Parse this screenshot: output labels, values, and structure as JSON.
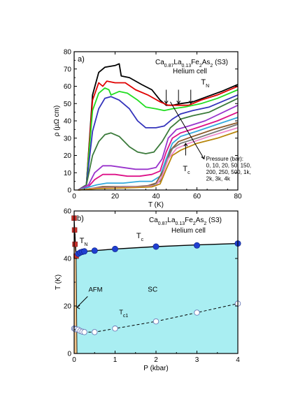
{
  "chart_data": [
    {
      "type": "line",
      "panel_label": "a)",
      "title_lines": [
        [
          {
            "t": "Ca"
          },
          {
            "t": "0.87",
            "sub": true
          },
          {
            "t": "La"
          },
          {
            "t": "0.13",
            "sub": true
          },
          {
            "t": "Fe"
          },
          {
            "t": "2",
            "sub": true
          },
          {
            "t": "As"
          },
          {
            "t": "2",
            "sub": true
          },
          {
            "t": "  (S3)"
          }
        ],
        [
          {
            "t": "Helium cell"
          }
        ]
      ],
      "xlabel": "T (K)",
      "ylabel": "ρ (µΩ cm)",
      "xlim": [
        0,
        80
      ],
      "ylim": [
        0,
        80
      ],
      "xticks": [
        0,
        20,
        40,
        60,
        80
      ],
      "yticks": [
        0,
        10,
        20,
        30,
        40,
        50,
        60,
        70,
        80
      ],
      "annotations": {
        "tn_label": "T",
        "tn_sub": "N",
        "tc_label": "T",
        "tc_sub": "c",
        "pressure_lines": [
          "Pressure (bar):",
          "0, 10, 20, 50, 150,",
          "200, 250, 500, 1k,",
          "2k, 3k, 4k"
        ]
      },
      "tn_arrows_x": [
        45,
        51,
        57
      ],
      "series": [
        {
          "color": "#000000",
          "points": [
            [
              2,
              0
            ],
            [
              6,
              3
            ],
            [
              9,
              55
            ],
            [
              12,
              68
            ],
            [
              15,
              71
            ],
            [
              20,
              72
            ],
            [
              22,
              73
            ],
            [
              23,
              66
            ],
            [
              27,
              65
            ],
            [
              33,
              61
            ],
            [
              38,
              58
            ],
            [
              42,
              52
            ],
            [
              45,
              49
            ],
            [
              48,
              49
            ],
            [
              52,
              50
            ],
            [
              58,
              51
            ],
            [
              65,
              54
            ],
            [
              72,
              57
            ],
            [
              80,
              61
            ]
          ]
        },
        {
          "color": "#e00000",
          "points": [
            [
              2,
              0
            ],
            [
              6,
              3
            ],
            [
              9,
              52
            ],
            [
              12,
              62
            ],
            [
              14,
              60
            ],
            [
              16,
              63
            ],
            [
              20,
              62
            ],
            [
              25,
              62
            ],
            [
              30,
              58
            ],
            [
              36,
              55
            ],
            [
              42,
              51
            ],
            [
              46,
              49
            ],
            [
              50,
              49
            ],
            [
              56,
              49
            ],
            [
              62,
              52
            ],
            [
              70,
              55
            ],
            [
              80,
              60
            ]
          ]
        },
        {
          "color": "#22dd22",
          "points": [
            [
              2,
              0
            ],
            [
              6,
              3
            ],
            [
              9,
              46
            ],
            [
              12,
              56
            ],
            [
              15,
              59
            ],
            [
              17,
              58
            ],
            [
              18,
              55
            ],
            [
              22,
              57
            ],
            [
              26,
              56
            ],
            [
              31,
              52
            ],
            [
              35,
              48
            ],
            [
              40,
              47
            ],
            [
              44,
              46
            ],
            [
              48,
              47
            ],
            [
              54,
              48
            ],
            [
              62,
              50
            ],
            [
              70,
              53
            ],
            [
              80,
              58
            ]
          ]
        },
        {
          "color": "#3333bb",
          "points": [
            [
              2,
              0
            ],
            [
              6,
              3
            ],
            [
              9,
              34
            ],
            [
              12,
              47
            ],
            [
              15,
              53
            ],
            [
              18,
              54
            ],
            [
              22,
              52
            ],
            [
              27,
              47
            ],
            [
              31,
              40
            ],
            [
              35,
              36
            ],
            [
              40,
              36
            ],
            [
              44,
              37
            ],
            [
              48,
              41
            ],
            [
              52,
              44
            ],
            [
              58,
              46
            ],
            [
              66,
              48
            ],
            [
              80,
              55
            ]
          ]
        },
        {
          "color": "#3a7a3a",
          "points": [
            [
              2,
              0
            ],
            [
              6,
              3
            ],
            [
              9,
              20
            ],
            [
              12,
              28
            ],
            [
              15,
              32
            ],
            [
              18,
              33
            ],
            [
              22,
              31
            ],
            [
              27,
              25
            ],
            [
              31,
              22
            ],
            [
              35,
              21
            ],
            [
              39,
              22
            ],
            [
              43,
              28
            ],
            [
              47,
              36
            ],
            [
              52,
              41
            ],
            [
              58,
              43
            ],
            [
              66,
              45
            ],
            [
              80,
              53
            ]
          ]
        },
        {
          "color": "#9933cc",
          "points": [
            [
              2,
              0
            ],
            [
              7,
              3
            ],
            [
              10,
              10
            ],
            [
              14,
              14
            ],
            [
              18,
              14
            ],
            [
              24,
              13
            ],
            [
              30,
              12
            ],
            [
              36,
              12
            ],
            [
              40,
              13
            ],
            [
              43,
              18
            ],
            [
              46,
              30
            ],
            [
              50,
              35
            ],
            [
              56,
              37
            ],
            [
              64,
              40
            ],
            [
              80,
              49
            ]
          ]
        },
        {
          "color": "#dd1188",
          "points": [
            [
              2,
              0
            ],
            [
              7,
              2
            ],
            [
              10,
              6
            ],
            [
              14,
              9
            ],
            [
              20,
              9
            ],
            [
              26,
              8
            ],
            [
              32,
              8
            ],
            [
              38,
              9
            ],
            [
              42,
              11
            ],
            [
              45,
              22
            ],
            [
              48,
              30
            ],
            [
              52,
              33
            ],
            [
              60,
              36
            ],
            [
              70,
              40
            ],
            [
              80,
              45
            ]
          ]
        },
        {
          "color": "#33aadd",
          "points": [
            [
              2,
              0
            ],
            [
              8,
              2
            ],
            [
              11,
              3
            ],
            [
              16,
              4
            ],
            [
              24,
              4
            ],
            [
              32,
              5
            ],
            [
              38,
              5
            ],
            [
              42,
              8
            ],
            [
              45,
              18
            ],
            [
              48,
              27
            ],
            [
              52,
              31
            ],
            [
              60,
              34
            ],
            [
              70,
              38
            ],
            [
              80,
              42
            ]
          ]
        },
        {
          "color": "#8b5a2b",
          "points": [
            [
              2,
              0
            ],
            [
              9,
              1
            ],
            [
              14,
              2
            ],
            [
              22,
              2
            ],
            [
              30,
              2
            ],
            [
              36,
              2.5
            ],
            [
              40,
              4
            ],
            [
              44,
              12
            ],
            [
              47,
              23
            ],
            [
              51,
              28
            ],
            [
              58,
              31
            ],
            [
              68,
              35
            ],
            [
              80,
              39
            ]
          ]
        },
        {
          "color": "#777777",
          "points": [
            [
              2,
              0
            ],
            [
              10,
              1
            ],
            [
              16,
              1.5
            ],
            [
              24,
              2
            ],
            [
              32,
              2
            ],
            [
              38,
              2.5
            ],
            [
              42,
              5
            ],
            [
              45,
              16
            ],
            [
              48,
              24
            ],
            [
              52,
              27
            ],
            [
              60,
              30
            ],
            [
              70,
              34
            ],
            [
              80,
              38
            ]
          ]
        },
        {
          "color": "#ee88cc",
          "points": [
            [
              2,
              0
            ],
            [
              10,
              1
            ],
            [
              18,
              1.3
            ],
            [
              26,
              1.6
            ],
            [
              34,
              1.8
            ],
            [
              40,
              2.5
            ],
            [
              43,
              8
            ],
            [
              46,
              18
            ],
            [
              50,
              24
            ],
            [
              56,
              27
            ],
            [
              66,
              31
            ],
            [
              80,
              36
            ]
          ]
        },
        {
          "color": "#b8860b",
          "points": [
            [
              2,
              0
            ],
            [
              11,
              0.8
            ],
            [
              20,
              1.1
            ],
            [
              30,
              1.4
            ],
            [
              38,
              1.8
            ],
            [
              42,
              3.5
            ],
            [
              45,
              12
            ],
            [
              48,
              20
            ],
            [
              52,
              23
            ],
            [
              60,
              27
            ],
            [
              70,
              30
            ],
            [
              80,
              34
            ]
          ]
        }
      ]
    },
    {
      "type": "line",
      "panel_label": "b)",
      "title_lines": [
        [
          {
            "t": "Ca"
          },
          {
            "t": "0.87",
            "sub": true
          },
          {
            "t": "La"
          },
          {
            "t": "0.13",
            "sub": true
          },
          {
            "t": "Fe"
          },
          {
            "t": "2",
            "sub": true
          },
          {
            "t": "As"
          },
          {
            "t": "2",
            "sub": true
          },
          {
            "t": "  (S3)"
          }
        ],
        [
          {
            "t": "Helium cell"
          }
        ]
      ],
      "xlabel": "P (kbar)",
      "ylabel": "T (K)",
      "xlim": [
        0,
        4
      ],
      "ylim": [
        0,
        60
      ],
      "xticks": [
        0,
        1,
        2,
        3,
        4
      ],
      "yticks": [
        0,
        20,
        40,
        60
      ],
      "labels": {
        "tn": "T",
        "tn_sub": "N",
        "tc": "T",
        "tc_sub": "c",
        "tc1": "T",
        "tc1_sub": "c1",
        "afm": "AFM",
        "sc": "SC"
      },
      "tn_points": [
        [
          0.0,
          57
        ],
        [
          0.01,
          52
        ],
        [
          0.02,
          46
        ],
        [
          0.05,
          41
        ]
      ],
      "tc_points": [
        [
          0.1,
          42
        ],
        [
          0.15,
          42.5
        ],
        [
          0.2,
          42.8
        ],
        [
          0.25,
          43
        ],
        [
          0.5,
          43.3
        ],
        [
          1.0,
          44
        ],
        [
          2.0,
          45
        ],
        [
          3.0,
          45.5
        ],
        [
          4.0,
          46.3
        ]
      ],
      "tc1_points": [
        [
          0.0,
          10.5
        ],
        [
          0.02,
          10.3
        ],
        [
          0.05,
          10.2
        ],
        [
          0.1,
          10
        ],
        [
          0.15,
          9.5
        ],
        [
          0.2,
          9.2
        ],
        [
          0.25,
          9
        ],
        [
          0.5,
          9
        ],
        [
          1.0,
          10.5
        ],
        [
          2.0,
          13.5
        ],
        [
          3.0,
          17.2
        ],
        [
          4.0,
          21
        ]
      ],
      "tc_curve": [
        [
          0.05,
          41
        ],
        [
          0.1,
          42
        ],
        [
          0.25,
          43
        ],
        [
          0.5,
          43.3
        ],
        [
          1.0,
          44
        ],
        [
          2.0,
          45
        ],
        [
          3.0,
          45.7
        ],
        [
          4.0,
          46.3
        ]
      ],
      "tc1_curve": [
        [
          0.0,
          10.3
        ],
        [
          0.25,
          9
        ],
        [
          0.5,
          9
        ],
        [
          1.0,
          10.5
        ],
        [
          2.0,
          13.5
        ],
        [
          3.0,
          17.2
        ],
        [
          4.0,
          21
        ]
      ],
      "colors": {
        "sc_fill": "#a9eef2",
        "afm_fill": "#f2c48a",
        "tn": "#c8302a",
        "tc": "#1f3fd0",
        "tc1": "#ffffff"
      }
    }
  ]
}
